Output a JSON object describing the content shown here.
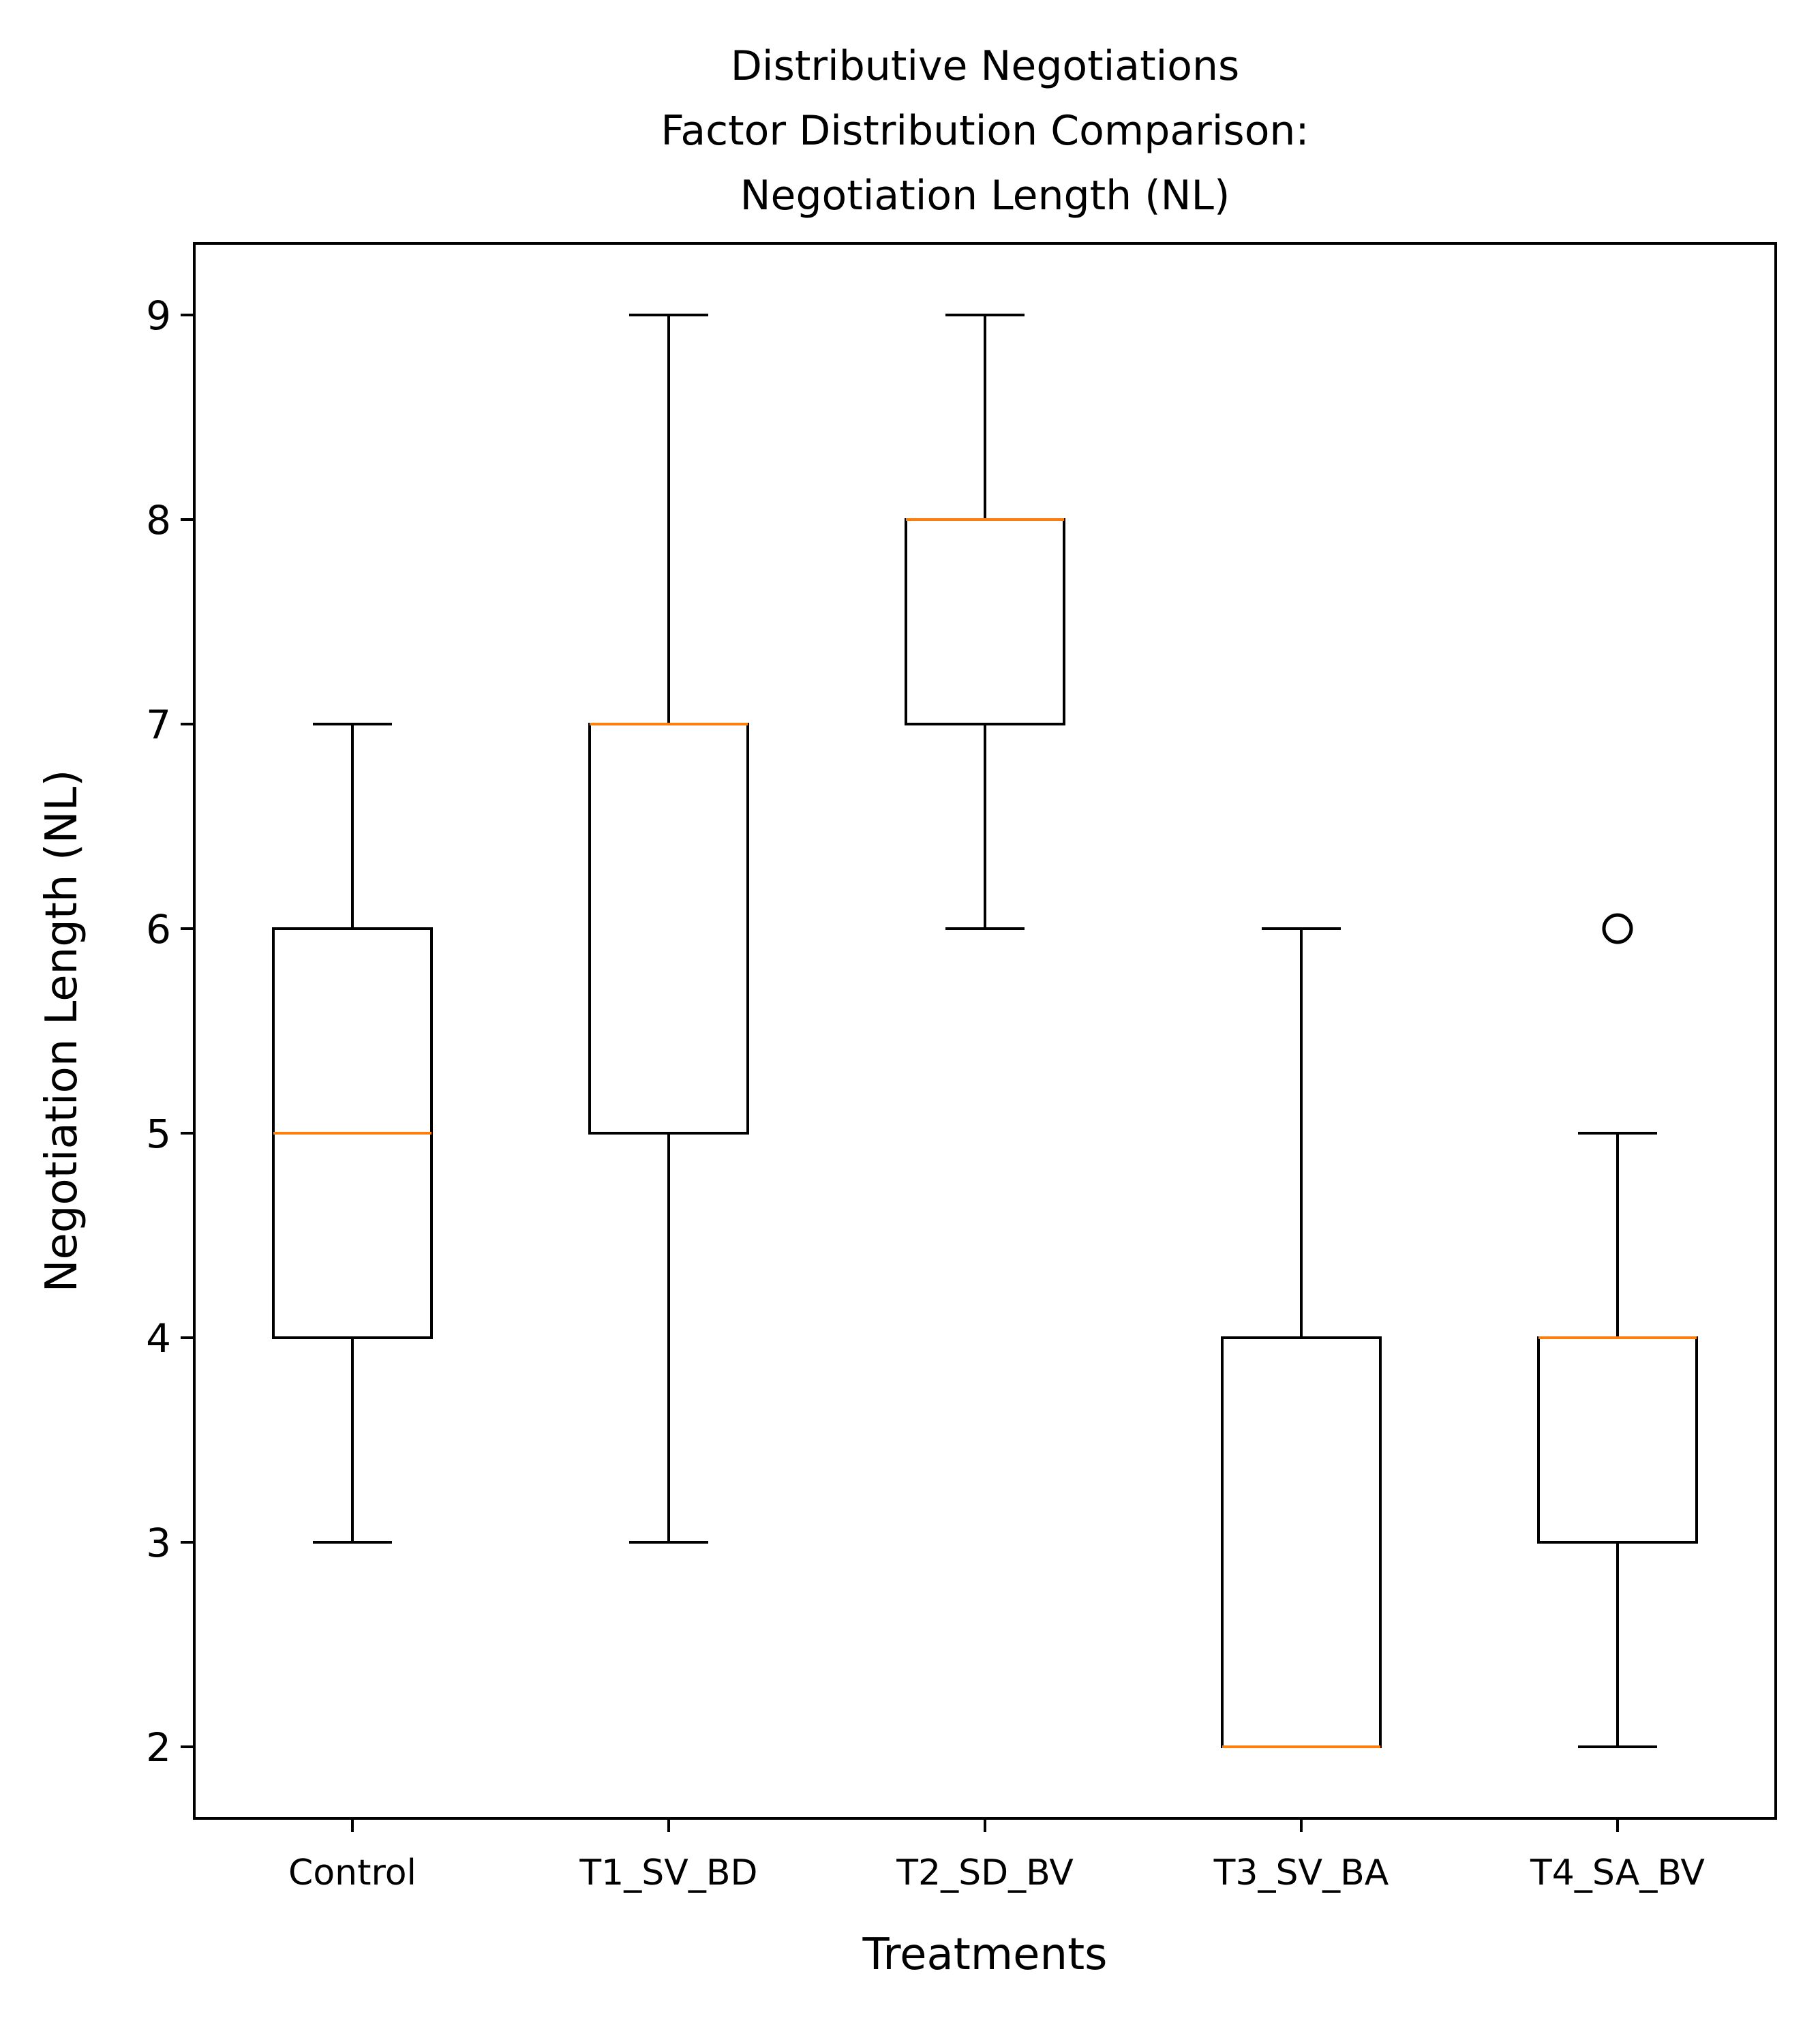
{
  "chart_data": {
    "type": "box",
    "title_lines": [
      "Distributive Negotiations",
      "Factor Distribution Comparison:",
      "Negotiation Length (NL)"
    ],
    "xlabel": "Treatments",
    "ylabel": "Negotiation Length (NL)",
    "ylim": [
      1.65,
      9.35
    ],
    "yticks": [
      2,
      3,
      4,
      5,
      6,
      7,
      8,
      9
    ],
    "grid": false,
    "categories": [
      "Control",
      "T1_SV_BD",
      "T2_SD_BV",
      "T3_SV_BA",
      "T4_SA_BV"
    ],
    "boxes": [
      {
        "category": "Control",
        "whisker_low": 3,
        "q1": 4,
        "median": 5,
        "q3": 6,
        "whisker_high": 7,
        "outliers": []
      },
      {
        "category": "T1_SV_BD",
        "whisker_low": 3,
        "q1": 5,
        "median": 7,
        "q3": 7,
        "whisker_high": 9,
        "outliers": []
      },
      {
        "category": "T2_SD_BV",
        "whisker_low": 6,
        "q1": 7,
        "median": 8,
        "q3": 8,
        "whisker_high": 9,
        "outliers": []
      },
      {
        "category": "T3_SV_BA",
        "whisker_low": 2,
        "q1": 2,
        "median": 2,
        "q3": 4,
        "whisker_high": 6,
        "outliers": []
      },
      {
        "category": "T4_SA_BV",
        "whisker_low": 2,
        "q1": 3,
        "median": 4,
        "q3": 4,
        "whisker_high": 5,
        "outliers": [
          6
        ]
      }
    ],
    "colors": {
      "box": "#000000",
      "median": "#ff7f0e",
      "outlier": "#000000"
    }
  }
}
